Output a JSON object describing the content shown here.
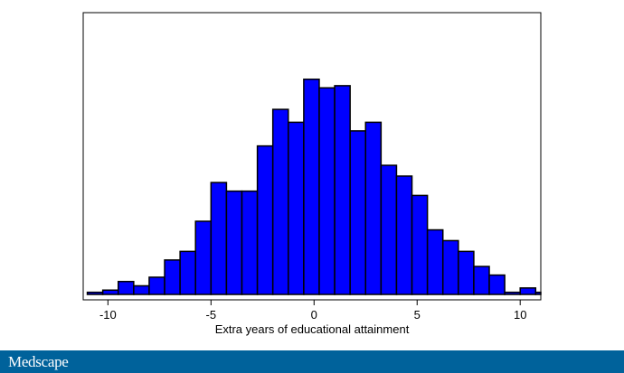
{
  "chart_data": {
    "type": "bar",
    "title": "",
    "xlabel": "Extra years of educational attainment",
    "ylabel": "",
    "bar_color": "#0000ff",
    "edge_color": "#000000",
    "xlim": [
      -11.2,
      11
    ],
    "ylim": [
      0,
      115
    ],
    "xticks": [
      -10,
      -5,
      0,
      5,
      10
    ],
    "bins": [
      {
        "x0": -11.0,
        "x1": -10.25,
        "value": 1
      },
      {
        "x0": -10.25,
        "x1": -9.5,
        "value": 2
      },
      {
        "x0": -9.5,
        "x1": -8.75,
        "value": 6
      },
      {
        "x0": -8.75,
        "x1": -8.0,
        "value": 4
      },
      {
        "x0": -8.0,
        "x1": -7.25,
        "value": 8
      },
      {
        "x0": -7.25,
        "x1": -6.5,
        "value": 16
      },
      {
        "x0": -6.5,
        "x1": -5.75,
        "value": 20
      },
      {
        "x0": -5.75,
        "x1": -5.0,
        "value": 34
      },
      {
        "x0": -5.0,
        "x1": -4.25,
        "value": 52
      },
      {
        "x0": -4.25,
        "x1": -3.5,
        "value": 48
      },
      {
        "x0": -3.5,
        "x1": -2.75,
        "value": 48
      },
      {
        "x0": -2.75,
        "x1": -2.0,
        "value": 69
      },
      {
        "x0": -2.0,
        "x1": -1.25,
        "value": 86
      },
      {
        "x0": -1.25,
        "x1": -0.5,
        "value": 80
      },
      {
        "x0": -0.5,
        "x1": 0.25,
        "value": 100
      },
      {
        "x0": 0.25,
        "x1": 1.0,
        "value": 96
      },
      {
        "x0": 1.0,
        "x1": 1.75,
        "value": 97
      },
      {
        "x0": 1.75,
        "x1": 2.5,
        "value": 76
      },
      {
        "x0": 2.5,
        "x1": 3.25,
        "value": 80
      },
      {
        "x0": 3.25,
        "x1": 4.0,
        "value": 60
      },
      {
        "x0": 4.0,
        "x1": 4.75,
        "value": 55
      },
      {
        "x0": 4.75,
        "x1": 5.5,
        "value": 46
      },
      {
        "x0": 5.5,
        "x1": 6.25,
        "value": 30
      },
      {
        "x0": 6.25,
        "x1": 7.0,
        "value": 25
      },
      {
        "x0": 7.0,
        "x1": 7.75,
        "value": 20
      },
      {
        "x0": 7.75,
        "x1": 8.5,
        "value": 13
      },
      {
        "x0": 8.5,
        "x1": 9.25,
        "value": 9
      },
      {
        "x0": 9.25,
        "x1": 10.0,
        "value": 1
      },
      {
        "x0": 10.0,
        "x1": 10.75,
        "value": 3
      },
      {
        "x0": 10.75,
        "x1": 11.0,
        "value": 1
      }
    ],
    "grid": false,
    "legend": "none"
  },
  "footer": {
    "brand": "Medscape",
    "background": "#00629b"
  }
}
